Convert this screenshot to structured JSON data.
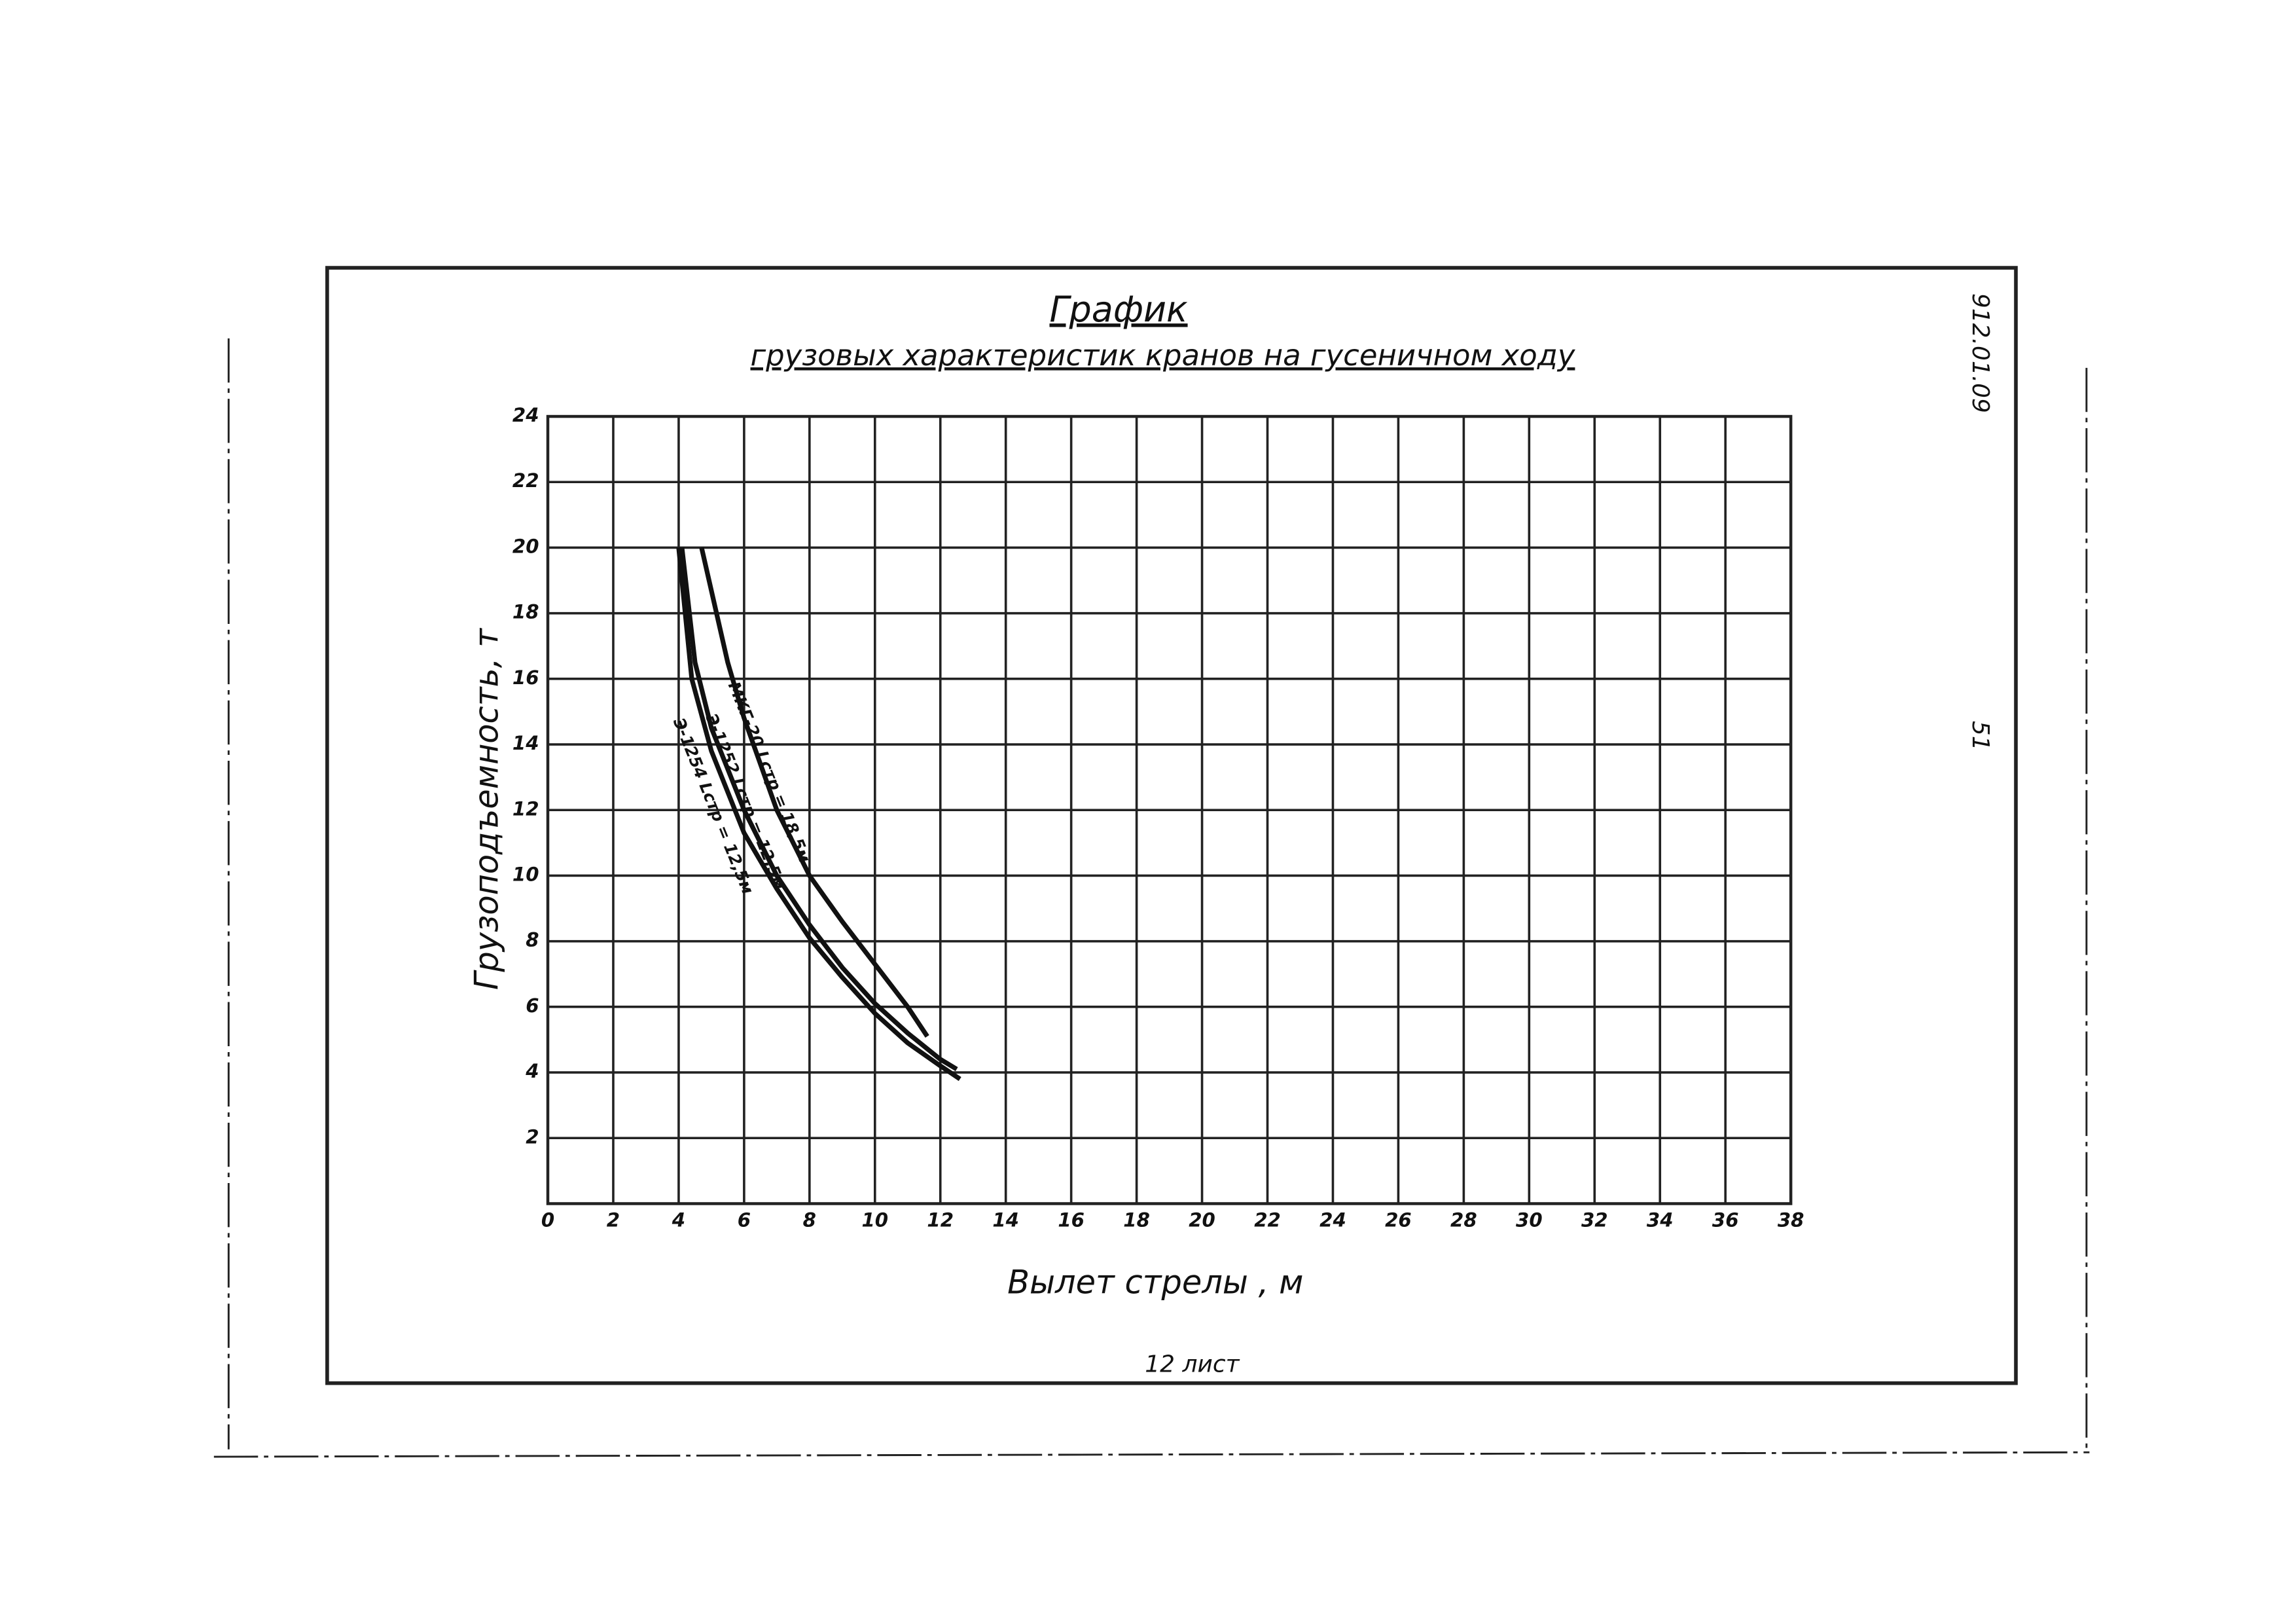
{
  "chart_data": {
    "type": "line",
    "title": "График",
    "subtitle": "грузовых характеристик кранов на гусеничном ходу",
    "x_label": "Вылет стрелы , м",
    "y_label": "Грузоподъемность, т",
    "xlim": [
      0,
      38
    ],
    "ylim": [
      0,
      24
    ],
    "xticks": [
      0,
      2,
      4,
      6,
      8,
      10,
      12,
      14,
      16,
      18,
      20,
      22,
      24,
      26,
      28,
      30,
      32,
      34,
      36,
      38
    ],
    "yticks": [
      2,
      4,
      6,
      8,
      10,
      12,
      14,
      16,
      18,
      20,
      22,
      24
    ],
    "grid": true,
    "series": [
      {
        "name": "МКГ-20 Lстр = 18,5м",
        "color": "#111111",
        "x": [
          4.7,
          5.5,
          6,
          7,
          8,
          9,
          10,
          11,
          11.6
        ],
        "values": [
          20,
          16.5,
          14.8,
          12,
          10,
          8.6,
          7.3,
          6,
          5.1
        ]
      },
      {
        "name": "Э-1252 Lстр = 12,5м",
        "color": "#111111",
        "x": [
          4.1,
          4.5,
          5,
          6,
          7,
          8,
          9,
          10,
          11,
          12,
          12.5
        ],
        "values": [
          20,
          16.5,
          14.5,
          12,
          10,
          8.5,
          7.2,
          6.1,
          5.2,
          4.4,
          4.1
        ]
      },
      {
        "name": "Э-1254 Lстр = 12,5м",
        "color": "#111111",
        "x": [
          4,
          4.4,
          5,
          6,
          7,
          8,
          9,
          10,
          11,
          12,
          12.6
        ],
        "values": [
          20,
          16,
          13.8,
          11.3,
          9.6,
          8.1,
          6.9,
          5.8,
          4.9,
          4.2,
          3.8
        ]
      }
    ]
  },
  "page": {
    "code": "912.01.09",
    "number": "51",
    "sheet": "12 лист"
  }
}
